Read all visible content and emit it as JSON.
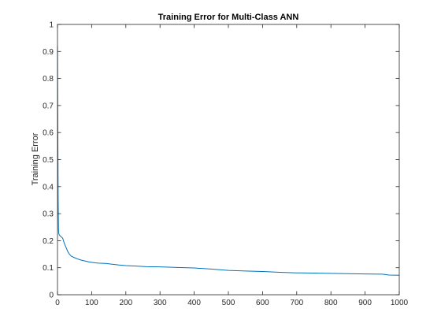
{
  "chart_data": {
    "type": "line",
    "title": "Training Error for Multi-Class ANN",
    "xlabel": "",
    "ylabel": "Training Error",
    "xlim": [
      0,
      1000
    ],
    "ylim": [
      0,
      1
    ],
    "xticks": [
      0,
      100,
      200,
      300,
      400,
      500,
      600,
      700,
      800,
      900,
      1000
    ],
    "yticks": [
      0,
      0.1,
      0.2,
      0.3,
      0.4,
      0.5,
      0.6,
      0.7,
      0.8,
      0.9,
      1
    ],
    "grid": false,
    "box": true,
    "series": [
      {
        "color": "#0072bd",
        "x": [
          0,
          1,
          2,
          3,
          4,
          6,
          10,
          15,
          20,
          25,
          30,
          35,
          40,
          50,
          60,
          70,
          80,
          90,
          100,
          110,
          120,
          140,
          160,
          180,
          200,
          230,
          260,
          300,
          350,
          400,
          450,
          500,
          550,
          600,
          650,
          700,
          750,
          800,
          850,
          900,
          950,
          970,
          1000
        ],
        "y": [
          0.92,
          0.6,
          0.35,
          0.24,
          0.225,
          0.22,
          0.215,
          0.21,
          0.19,
          0.175,
          0.16,
          0.15,
          0.143,
          0.137,
          0.132,
          0.128,
          0.125,
          0.122,
          0.12,
          0.118,
          0.117,
          0.116,
          0.113,
          0.11,
          0.108,
          0.106,
          0.104,
          0.103,
          0.101,
          0.099,
          0.095,
          0.09,
          0.088,
          0.086,
          0.083,
          0.081,
          0.08,
          0.079,
          0.078,
          0.077,
          0.076,
          0.073,
          0.072
        ]
      }
    ]
  }
}
